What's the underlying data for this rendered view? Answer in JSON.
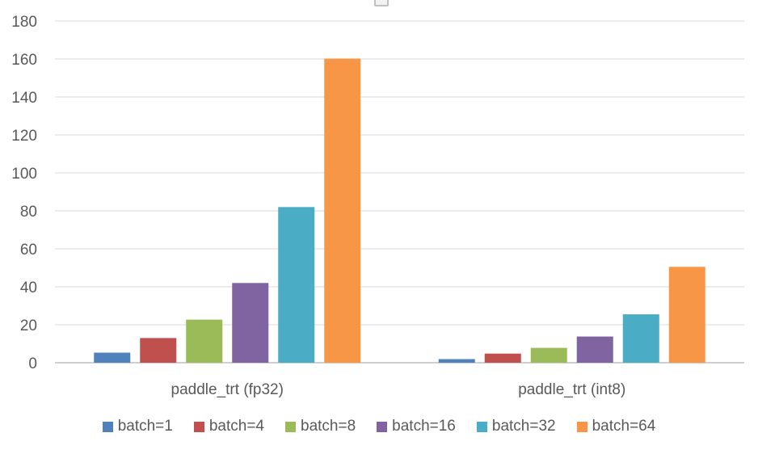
{
  "chart_data": {
    "type": "bar",
    "categories": [
      "paddle_trt (fp32)",
      "paddle_trt (int8)"
    ],
    "series": [
      {
        "name": "batch=1",
        "values": [
          5.3,
          1.9
        ],
        "color": "#4F81BD"
      },
      {
        "name": "batch=4",
        "values": [
          13,
          4.8
        ],
        "color": "#C0504D"
      },
      {
        "name": "batch=8",
        "values": [
          22.7,
          7.8
        ],
        "color": "#9BBB59"
      },
      {
        "name": "batch=16",
        "values": [
          42,
          13.8
        ],
        "color": "#8064A2"
      },
      {
        "name": "batch=32",
        "values": [
          82,
          25.5
        ],
        "color": "#4BACC6"
      },
      {
        "name": "batch=64",
        "values": [
          160.2,
          50.5
        ],
        "color": "#F79646"
      }
    ],
    "yticks": [
      0,
      20,
      40,
      60,
      80,
      100,
      120,
      140,
      160,
      180
    ],
    "ylim": [
      0,
      180
    ],
    "grid": true,
    "legend": "bottom"
  }
}
